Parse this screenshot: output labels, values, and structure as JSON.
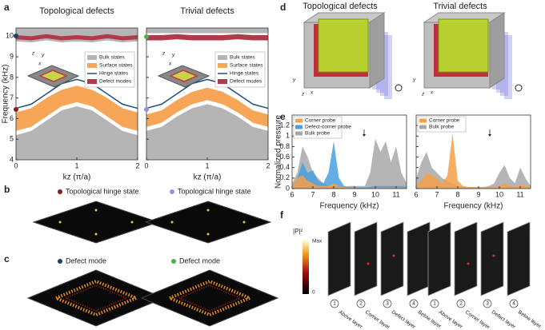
{
  "panel_labels": [
    "a",
    "b",
    "c",
    "d",
    "e",
    "f"
  ],
  "chart_data": [
    {
      "type": "band",
      "title": "Topological defects",
      "x_label": "kz (π/a)",
      "y_label": "Frequency (kHz)",
      "xlim": [
        0,
        2
      ],
      "xticks": [
        0,
        1,
        2
      ],
      "ylim": [
        4,
        10.4
      ],
      "yticks": [
        4,
        5,
        6,
        7,
        8,
        9,
        10
      ],
      "legend": "inset",
      "x": [
        0,
        0.25,
        0.5,
        0.75,
        1,
        1.25,
        1.5,
        1.75,
        2
      ],
      "series": [
        {
          "name": "Bulk states",
          "color": "#b5b5b5",
          "lower": [
            4,
            4,
            4,
            4,
            4,
            4,
            4,
            4,
            4
          ],
          "values": [
            5.2,
            5.4,
            5.9,
            6.4,
            6.6,
            6.4,
            5.9,
            5.4,
            5.2
          ]
        },
        {
          "name": "Bulk states",
          "color": "#b5b5b5",
          "lower": [
            9.75,
            9.7,
            9.8,
            9.7,
            9.75,
            9.7,
            9.8,
            9.7,
            9.75
          ],
          "values": [
            10.4,
            10.4,
            10.4,
            10.4,
            10.4,
            10.4,
            10.4,
            10.4,
            10.4
          ]
        },
        {
          "name": "Surface states",
          "color": "#f7a556",
          "lower": [
            5.4,
            5.6,
            6.1,
            6.6,
            6.8,
            6.6,
            6.1,
            5.6,
            5.4
          ],
          "values": [
            6.3,
            6.5,
            7.0,
            7.4,
            7.6,
            7.4,
            7.0,
            6.5,
            6.3
          ]
        },
        {
          "name": "Hinge states",
          "color": "#1f4e79",
          "values": [
            6.5,
            6.7,
            7.2,
            7.7,
            7.9,
            7.7,
            7.2,
            6.7,
            6.5
          ]
        },
        {
          "name": "Defect modes",
          "color": "#b03a4a",
          "lower": [
            9.85,
            9.8,
            9.9,
            9.8,
            9.85,
            9.8,
            9.9,
            9.8,
            9.85
          ],
          "values": [
            10.05,
            10.0,
            10.1,
            10.0,
            10.05,
            10.0,
            10.1,
            10.0,
            10.05
          ]
        }
      ]
    },
    {
      "type": "band",
      "title": "Trivial defects",
      "x_label": "kz (π/a)",
      "xlim": [
        0,
        2
      ],
      "xticks": [
        0,
        1,
        2
      ],
      "ylim": [
        4,
        10.4
      ],
      "yticks": [
        4,
        5,
        6,
        7,
        8,
        9,
        10
      ],
      "ytick_labels": false,
      "legend": "inset",
      "x": [
        0,
        0.25,
        0.5,
        0.75,
        1,
        1.25,
        1.5,
        1.75,
        2
      ],
      "series": [
        {
          "name": "Bulk states",
          "color": "#b5b5b5",
          "lower": [
            4,
            4,
            4,
            4,
            4,
            4,
            4,
            4,
            4
          ],
          "values": [
            5.4,
            5.6,
            6.1,
            6.5,
            6.7,
            6.5,
            6.1,
            5.6,
            5.4
          ]
        },
        {
          "name": "Bulk states",
          "color": "#b5b5b5",
          "lower": [
            10.15,
            10.15,
            10.15,
            10.15,
            10.15,
            10.15,
            10.15,
            10.15,
            10.15
          ],
          "values": [
            10.4,
            10.4,
            10.4,
            10.4,
            10.4,
            10.4,
            10.4,
            10.4,
            10.4
          ]
        },
        {
          "name": "Surface states",
          "color": "#f7a556",
          "lower": [
            5.6,
            5.8,
            6.3,
            6.7,
            6.9,
            6.7,
            6.3,
            5.8,
            5.6
          ],
          "values": [
            6.2,
            6.4,
            6.9,
            7.3,
            7.5,
            7.3,
            6.9,
            6.4,
            6.2
          ]
        },
        {
          "name": "Hinge states",
          "color": "#1f4e79",
          "values": [
            6.5,
            6.7,
            7.2,
            7.7,
            7.9,
            7.7,
            7.2,
            6.7,
            6.5
          ]
        },
        {
          "name": "Defect modes",
          "color": "#b03a4a",
          "lower": [
            9.8,
            9.8,
            9.85,
            9.8,
            9.8,
            9.8,
            9.85,
            9.8,
            9.8
          ],
          "values": [
            10.05,
            10.05,
            10.1,
            10.05,
            10.05,
            10.05,
            10.1,
            10.05,
            10.05
          ]
        }
      ]
    },
    {
      "type": "spectrum",
      "x_label": "Frequency (kHz)",
      "y_label": "Normalized pressure",
      "xlim": [
        6,
        11.5
      ],
      "xticks": [
        6,
        7,
        8,
        9,
        10,
        11
      ],
      "ylim": [
        0,
        1.4
      ],
      "yticks": [
        0,
        0.2,
        0.4,
        0.6,
        0.8,
        1.0,
        1.2
      ],
      "legend": "upper left",
      "x": [
        6,
        6.25,
        6.5,
        6.75,
        7,
        7.25,
        7.5,
        7.75,
        8,
        8.25,
        8.5,
        8.75,
        9,
        9.25,
        9.5,
        9.75,
        10,
        10.25,
        10.5,
        10.75,
        11,
        11.25,
        11.5
      ],
      "series": [
        {
          "name": "Corner probe",
          "color": "#f5a04a",
          "values": [
            0.05,
            0.2,
            0.25,
            0.15,
            0.1,
            0.05,
            0.05,
            0.05,
            0.1,
            0.05,
            0.03,
            0.02,
            0.01,
            0.01,
            0.01,
            0.01,
            0.02,
            0.02,
            0.02,
            0.02,
            0.02,
            0.02,
            0.01
          ]
        },
        {
          "name": "Defect-corner probe",
          "color": "#4a9fe0",
          "values": [
            0.05,
            0.2,
            0.5,
            0.3,
            0.35,
            0.15,
            0.1,
            0.3,
            0.9,
            0.2,
            0.05,
            0.03,
            0.02,
            0.02,
            0.02,
            0.03,
            0.05,
            0.05,
            0.05,
            0.05,
            0.05,
            0.05,
            0.03
          ]
        },
        {
          "name": "Bulk probe",
          "color": "#a8a8a8",
          "values": [
            0.1,
            0.3,
            0.8,
            0.6,
            0.3,
            0.2,
            0.1,
            0.05,
            0.05,
            0.03,
            0.03,
            0.05,
            0.05,
            0.05,
            0.05,
            0.3,
            0.95,
            0.7,
            0.9,
            0.5,
            0.8,
            0.3,
            0.1
          ]
        }
      ]
    },
    {
      "type": "spectrum",
      "x_label": "Frequency (kHz)",
      "xlim": [
        6,
        11.5
      ],
      "xticks": [
        6,
        7,
        8,
        9,
        10,
        11
      ],
      "ylim": [
        0,
        1.4
      ],
      "yticks": [
        0,
        0.2,
        0.4,
        0.6,
        0.8,
        1.0,
        1.2
      ],
      "ytick_labels": false,
      "legend": "upper left",
      "x": [
        6,
        6.25,
        6.5,
        6.75,
        7,
        7.25,
        7.5,
        7.75,
        8,
        8.25,
        8.5,
        8.75,
        9,
        9.25,
        9.5,
        9.75,
        10,
        10.25,
        10.5,
        10.75,
        11,
        11.25,
        11.5
      ],
      "series": [
        {
          "name": "Corner probe",
          "color": "#f5a04a",
          "values": [
            0.05,
            0.15,
            0.3,
            0.25,
            0.2,
            0.1,
            0.25,
            1.05,
            0.15,
            0.05,
            0.03,
            0.02,
            0.02,
            0.02,
            0.02,
            0.02,
            0.05,
            0.1,
            0.05,
            0.03,
            0.08,
            0.05,
            0.02
          ]
        },
        {
          "name": "Bulk probe",
          "color": "#a8a8a8",
          "values": [
            0.2,
            0.5,
            0.7,
            0.4,
            0.3,
            0.2,
            0.15,
            0.1,
            0.05,
            0.03,
            0.03,
            0.03,
            0.03,
            0.03,
            0.05,
            0.1,
            0.3,
            0.45,
            0.2,
            0.1,
            0.4,
            0.2,
            0.05
          ]
        }
      ]
    }
  ],
  "hinge_titles": [
    "Topological hinge state",
    "Topological hinge state"
  ],
  "defect_titles": [
    "Defect mode",
    "Defect mode"
  ],
  "cube_titles": [
    "Topological defects",
    "Trivial defects"
  ],
  "axis_letters": [
    "x",
    "y",
    "z"
  ],
  "colorbar": {
    "label": "|P|²",
    "max": "Max",
    "min": "0"
  },
  "layer_numbers": [
    "1",
    "2",
    "3",
    "4"
  ],
  "layers": [
    "Above layer",
    "Corner layer",
    "Defect layer",
    "Below layer"
  ]
}
